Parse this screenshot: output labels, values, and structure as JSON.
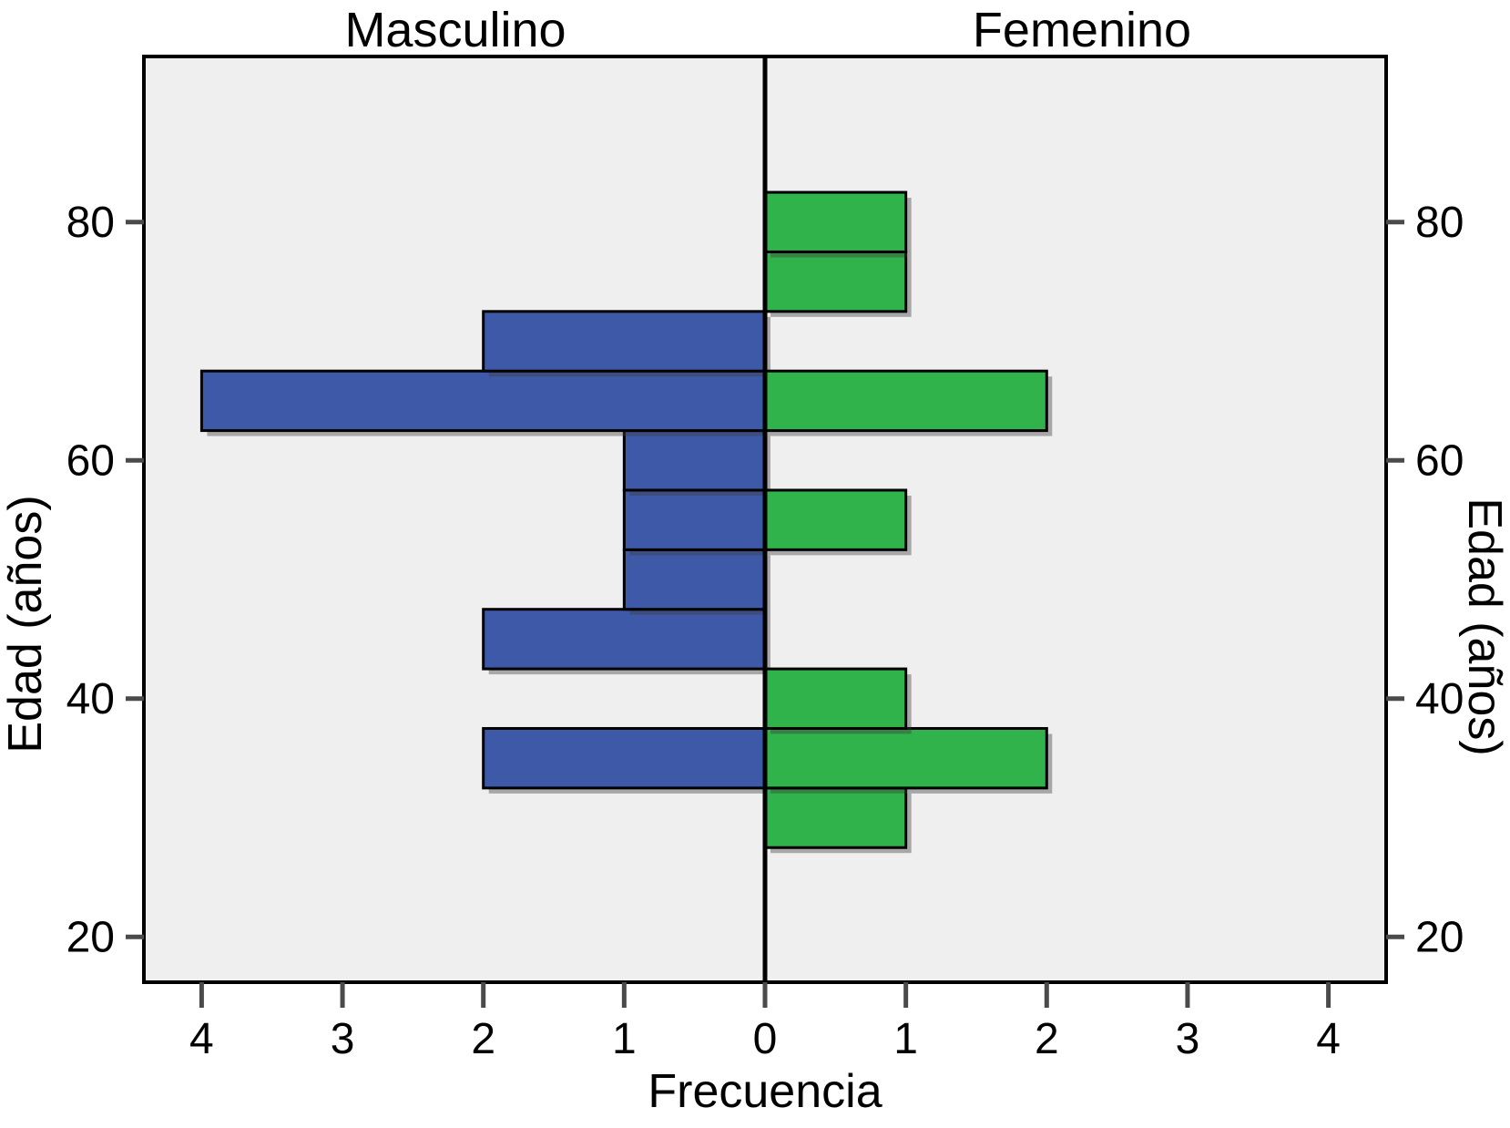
{
  "chart_data": {
    "type": "bar",
    "subtype": "population_pyramid",
    "panel_titles": {
      "left": "Masculino",
      "right": "Femenino"
    },
    "xlabel": "Frecuencia",
    "ylabel_left": "Edad (años)",
    "ylabel_right": "Edad (años)",
    "x_tick_values": [
      -4,
      -3,
      -2,
      -1,
      0,
      1,
      2,
      3,
      4
    ],
    "x_tick_labels": [
      "4",
      "3",
      "2",
      "1",
      "0",
      "1",
      "2",
      "3",
      "4"
    ],
    "y_tick_values": [
      20,
      40,
      60,
      80
    ],
    "y_tick_labels": [
      "20",
      "40",
      "60",
      "80"
    ],
    "xlim": [
      -4.41,
      4.41
    ],
    "ylim": [
      16.2,
      93.9
    ],
    "bin_width": 5,
    "grid": false,
    "legend": "none",
    "series": [
      {
        "name": "Masculino",
        "side": "left",
        "color": "#3E59A8",
        "bins": [
          {
            "age_center": 70,
            "age_range": "67.5-72.5",
            "value": 2
          },
          {
            "age_center": 65,
            "age_range": "62.5-67.5",
            "value": 4
          },
          {
            "age_center": 60,
            "age_range": "57.5-62.5",
            "value": 1
          },
          {
            "age_center": 55,
            "age_range": "52.5-57.5",
            "value": 1
          },
          {
            "age_center": 50,
            "age_range": "47.5-52.5",
            "value": 1
          },
          {
            "age_center": 45,
            "age_range": "42.5-47.5",
            "value": 2
          },
          {
            "age_center": 35,
            "age_range": "32.5-37.5",
            "value": 2
          }
        ]
      },
      {
        "name": "Femenino",
        "side": "right",
        "color": "#2FB34A",
        "bins": [
          {
            "age_center": 80,
            "age_range": "77.5-82.5",
            "value": 1
          },
          {
            "age_center": 75,
            "age_range": "72.5-77.5",
            "value": 1
          },
          {
            "age_center": 65,
            "age_range": "62.5-67.5",
            "value": 2
          },
          {
            "age_center": 55,
            "age_range": "52.5-57.5",
            "value": 1
          },
          {
            "age_center": 40,
            "age_range": "37.5-42.5",
            "value": 1
          },
          {
            "age_center": 35,
            "age_range": "32.5-37.5",
            "value": 2
          },
          {
            "age_center": 30,
            "age_range": "27.5-32.5",
            "value": 1
          }
        ]
      }
    ],
    "styles": {
      "plot_background": "#EFEFEF",
      "outer_background": "#FFFFFF",
      "frame_color": "#000000",
      "bar_border_color": "#000000",
      "center_line_color": "#000000",
      "tick_color": "#4A4A4A",
      "text_color": "#000000"
    }
  }
}
